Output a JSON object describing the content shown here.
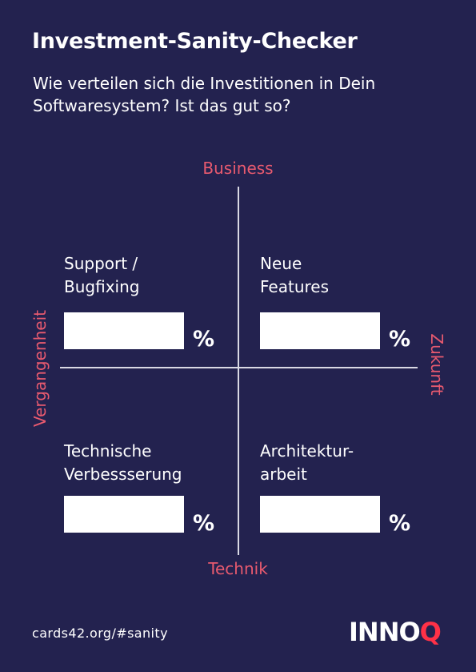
{
  "card": {
    "title": "Investment-Sanity-Checker",
    "subtitle": "Wie verteilen sich die Investitionen in Dein Softwaresystem? Ist das gut so?"
  },
  "axes": {
    "top": "Business",
    "bottom": "Technik",
    "left": "Vergangenheit",
    "right": "Zukunft"
  },
  "quadrants": {
    "top_left": {
      "label": "Support /\nBugfixing",
      "unit": "%",
      "value": ""
    },
    "top_right": {
      "label": "Neue\nFeatures",
      "unit": "%",
      "value": ""
    },
    "bottom_left": {
      "label": "Technische\nVerbessserung",
      "unit": "%",
      "value": ""
    },
    "bottom_right": {
      "label": "Architektur-\narbeit",
      "unit": "%",
      "value": ""
    }
  },
  "footer": {
    "link": "cards42.org/#sanity",
    "logo_main": "INNO",
    "logo_accent": "Q"
  },
  "colors": {
    "background": "#23224f",
    "accent": "#e85a6f",
    "text": "#ffffff"
  }
}
